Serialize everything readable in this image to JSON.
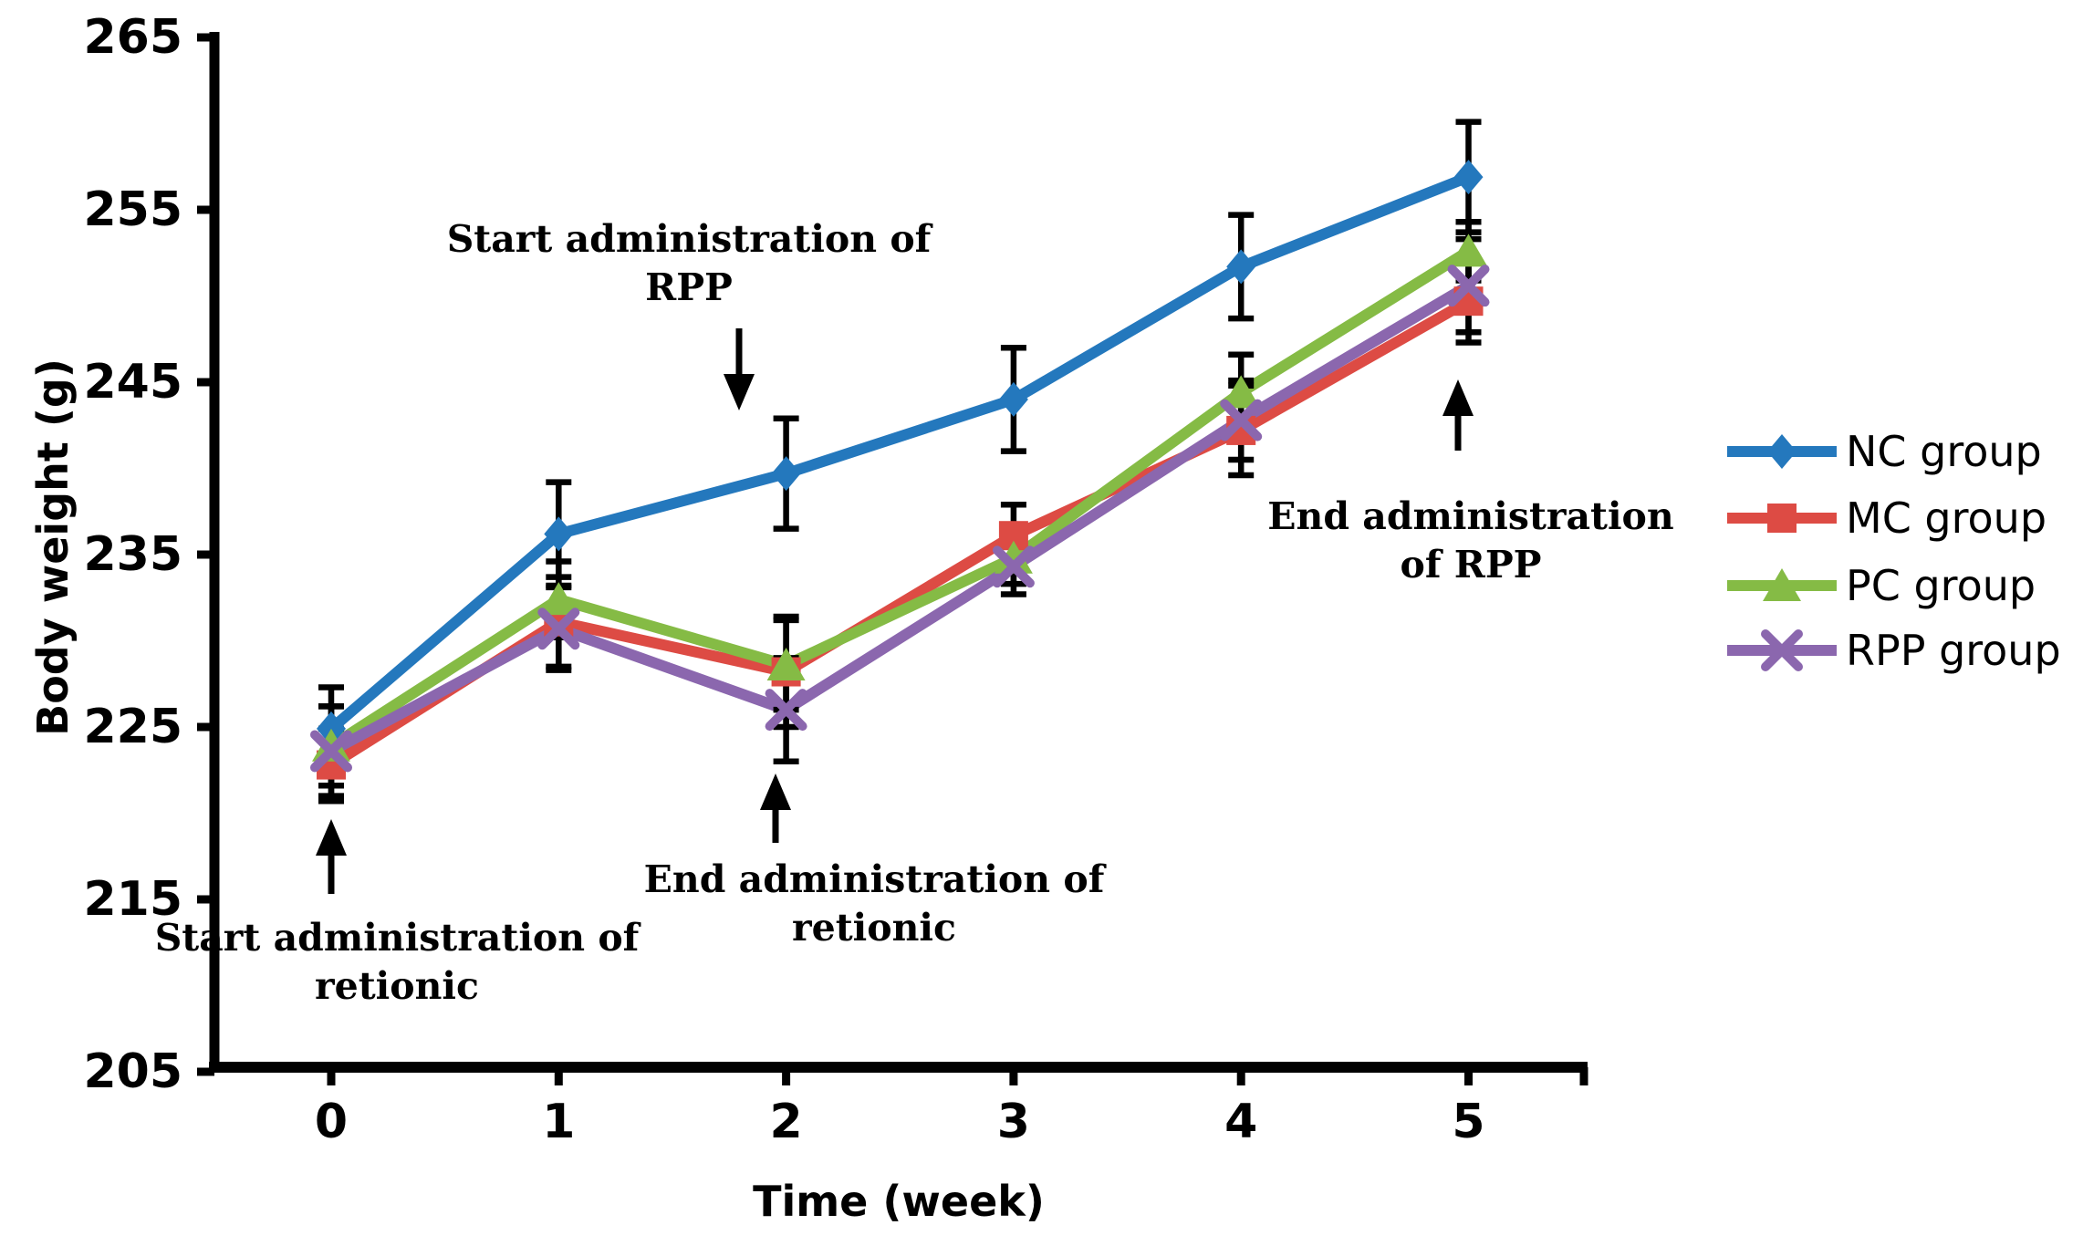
{
  "chart_data": {
    "type": "line",
    "title": "",
    "xlabel": "Time (week)",
    "ylabel": "Body weight (g)",
    "x": [
      0,
      1,
      2,
      3,
      4,
      5
    ],
    "xticklabels": [
      "0",
      "1",
      "2",
      "3",
      "4",
      "5"
    ],
    "yticks": [
      205,
      215,
      225,
      235,
      245,
      255,
      265
    ],
    "ylim": [
      205,
      265
    ],
    "grid": false,
    "legend_position": "right",
    "error_bar_color": "#000000",
    "series": [
      {
        "name": "NC group",
        "color": "#2478BD",
        "marker": "diamond",
        "values": [
          224.9,
          236.2,
          239.7,
          244.0,
          251.7,
          256.9
        ],
        "errors": [
          2.4,
          3.0,
          3.2,
          3.0,
          3.0,
          3.2
        ]
      },
      {
        "name": "MC group",
        "color": "#DD4B44",
        "marker": "square",
        "values": [
          222.8,
          231.1,
          228.2,
          236.1,
          242.2,
          249.7
        ],
        "errors": [
          2.1,
          2.6,
          3.2,
          1.8,
          2.6,
          2.4
        ]
      },
      {
        "name": "PC group",
        "color": "#85BB45",
        "marker": "triangle",
        "values": [
          223.9,
          232.4,
          228.6,
          234.8,
          244.4,
          252.6
        ],
        "errors": [
          2.3,
          2.2,
          2.6,
          1.5,
          2.2,
          1.7
        ]
      },
      {
        "name": "RPP group",
        "color": "#8B67AE",
        "marker": "x",
        "values": [
          223.6,
          230.7,
          226.0,
          234.3,
          242.8,
          250.6
        ],
        "errors": [
          2.6,
          2.4,
          3.0,
          1.6,
          2.3,
          2.7
        ]
      }
    ],
    "annotations": [
      {
        "id": "start-retionic",
        "line1": "Start administration of",
        "line2": "retionic",
        "arrow": "up",
        "week": 0
      },
      {
        "id": "start-rpp",
        "line1": "Start administration of",
        "line2": "RPP",
        "arrow": "down",
        "week": 2
      },
      {
        "id": "end-retionic",
        "line1": "End administration of",
        "line2": "retionic",
        "arrow": "up",
        "week": 2
      },
      {
        "id": "end-rpp",
        "line1": "End administration",
        "line2": "of RPP",
        "arrow": "up",
        "week": 5
      }
    ]
  }
}
